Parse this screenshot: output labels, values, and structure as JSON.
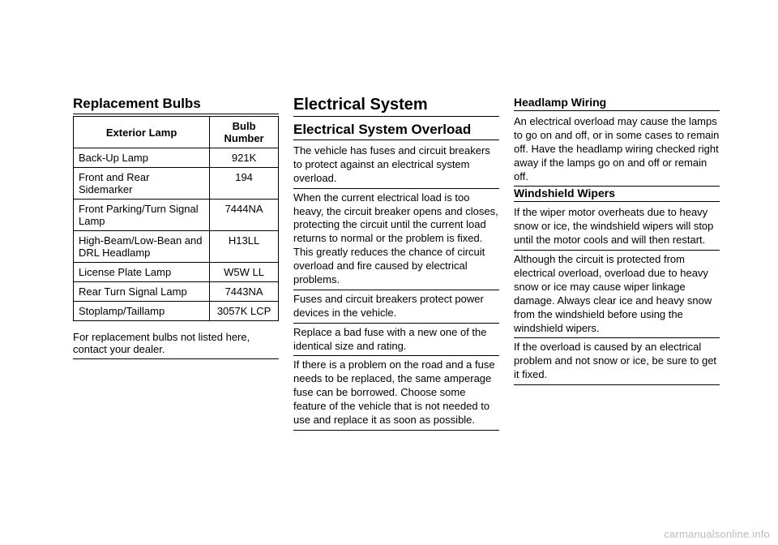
{
  "col1": {
    "heading": "Replacement Bulbs",
    "table": {
      "headers": [
        "Exterior Lamp",
        "Bulb Number"
      ],
      "rows": [
        [
          "Back-Up Lamp",
          "921K"
        ],
        [
          "Front and Rear Sidemarker",
          "194"
        ],
        [
          "Front Parking/Turn Signal Lamp",
          "7444NA"
        ],
        [
          "High-Beam/Low-Bean and DRL Headlamp",
          "H13LL"
        ],
        [
          "License Plate Lamp",
          "W5W LL"
        ],
        [
          "Rear Turn Signal Lamp",
          "7443NA"
        ],
        [
          "Stoplamp/Taillamp",
          "3057K LCP"
        ]
      ]
    },
    "note": "For replacement bulbs not listed here, contact your dealer."
  },
  "col2": {
    "h1": "Electrical System",
    "h2": "Electrical System Overload",
    "paras": [
      "The vehicle has fuses and circuit breakers to protect against an electrical system overload.",
      "When the current electrical load is too heavy, the circuit breaker opens and closes, protecting the circuit until the current load returns to normal or the problem is fixed. This greatly reduces the chance of circuit overload and fire caused by electrical problems.",
      "Fuses and circuit breakers protect power devices in the vehicle.",
      "Replace a bad fuse with a new one of the identical size and rating.",
      "If there is a problem on the road and a fuse needs to be replaced, the same amperage fuse can be borrowed. Choose some feature of the vehicle that is not needed to use and replace it as soon as possible."
    ]
  },
  "col3": {
    "h3a": "Headlamp Wiring",
    "p1": "An electrical overload may cause the lamps to go on and off, or in some cases to remain off. Have the headlamp wiring checked right away if the lamps go on and off or remain off.",
    "h3b": "Windshield Wipers",
    "p2": "If the wiper motor overheats due to heavy snow or ice, the windshield wipers will stop until the motor cools and will then restart.",
    "p3": "Although the circuit is protected from electrical overload, overload due to heavy snow or ice may cause wiper linkage damage. Always clear ice and heavy snow from the windshield before using the windshield wipers.",
    "p4": "If the overload is caused by an electrical problem and not snow or ice, be sure to get it fixed."
  },
  "watermark": "carmanualsonline.info"
}
